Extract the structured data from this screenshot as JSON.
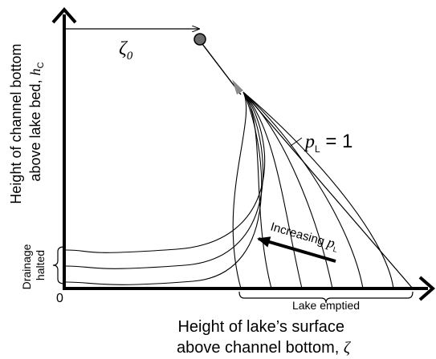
{
  "axes": {
    "y_label_line1": "Height of channel bottom",
    "y_label_line2": "above lake bed,",
    "y_symbol": "h",
    "y_symbol_sub": "C",
    "x_label_line1": "Height of lake’s surface",
    "x_label_line2": "above channel bottom,",
    "x_symbol": "ζ",
    "origin": "0"
  },
  "annotations": {
    "zeta0_symbol": "ζ",
    "zeta0_sub": "0",
    "pL_symbol": "p",
    "pL_sub": "L",
    "pL_value": " = 1",
    "increasing_text": "Increasing ",
    "increasing_symbol": "p",
    "increasing_sub": "L",
    "drainage_line1": "Drainage",
    "drainage_line2": "halted",
    "lake_emptied": "Lake emptied"
  },
  "curves": {
    "count": 9,
    "color": "#000000",
    "start_point_color": "#6b6b6b"
  }
}
